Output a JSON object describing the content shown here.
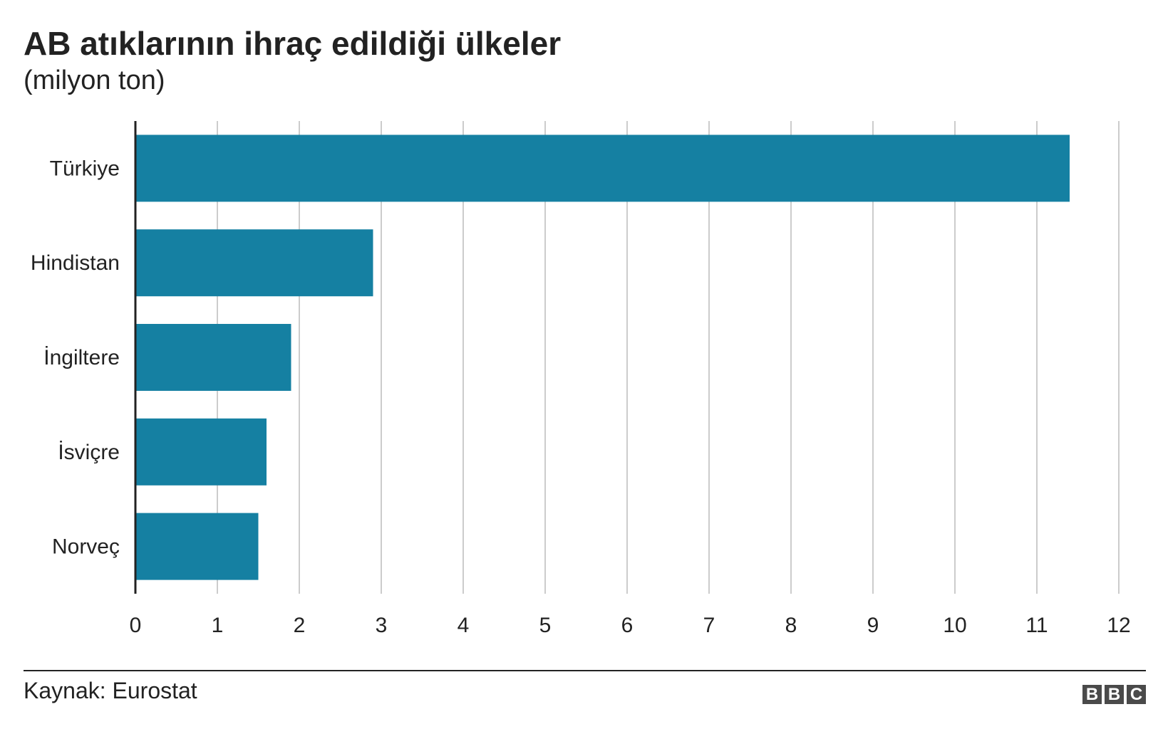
{
  "header": {
    "title": "AB atıklarının ihraç edildiği ülkeler",
    "subtitle": "(milyon ton)"
  },
  "footer": {
    "source": "Kaynak: Eurostat",
    "logo_letters": [
      "B",
      "B",
      "C"
    ]
  },
  "colors": {
    "bar": "#1580a2",
    "grid": "#cccccc",
    "axis": "#222222"
  },
  "chart_data": {
    "type": "bar",
    "orientation": "horizontal",
    "categories": [
      "Türkiye",
      "Hindistan",
      "İngiltere",
      "İsviçre",
      "Norveç"
    ],
    "values": [
      11.4,
      2.9,
      1.9,
      1.6,
      1.5
    ],
    "xlim": [
      0,
      12
    ],
    "xticks": [
      0,
      1,
      2,
      3,
      4,
      5,
      6,
      7,
      8,
      9,
      10,
      11,
      12
    ],
    "grid": true,
    "legend": "none"
  }
}
